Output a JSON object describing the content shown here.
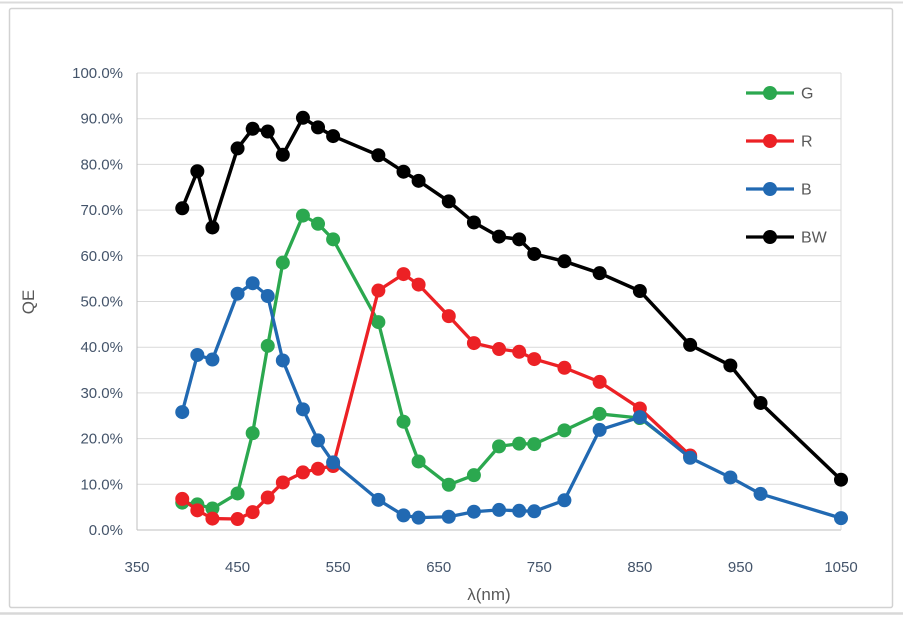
{
  "chart_data": {
    "type": "line",
    "title": "",
    "xlabel": "λ(nm)",
    "ylabel": "QE",
    "xlim": [
      350,
      1050
    ],
    "ylim": [
      0,
      100
    ],
    "grid": "horizontal-only",
    "legend_position": "top-right",
    "x_ticks": [
      350,
      450,
      550,
      650,
      750,
      850,
      950,
      1050
    ],
    "y_ticks": [
      0,
      10,
      20,
      30,
      40,
      50,
      60,
      70,
      80,
      90,
      100
    ],
    "y_tick_labels": [
      "0.0%",
      "10.0%",
      "20.0%",
      "30.0%",
      "40.0%",
      "50.0%",
      "60.0%",
      "70.0%",
      "80.0%",
      "90.0%",
      "100.0%"
    ],
    "x": [
      395,
      410,
      425,
      450,
      465,
      480,
      495,
      515,
      530,
      545,
      590,
      615,
      630,
      660,
      685,
      710,
      730,
      745,
      775,
      810,
      850,
      900,
      940,
      970,
      1050
    ],
    "series": [
      {
        "name": "G",
        "color": "#2BA84F",
        "values": [
          6.0,
          5.6,
          4.7,
          8.0,
          21.2,
          40.3,
          58.5,
          68.8,
          67.0,
          63.6,
          45.5,
          23.7,
          15.0,
          9.9,
          12.0,
          18.3,
          18.9,
          18.8,
          21.8,
          25.4,
          24.5,
          16.0,
          null,
          null,
          null
        ]
      },
      {
        "name": "R",
        "color": "#EC2125",
        "values": [
          6.8,
          4.3,
          2.5,
          2.4,
          3.9,
          7.1,
          10.4,
          12.6,
          13.4,
          14.0,
          52.4,
          56.0,
          53.7,
          46.8,
          40.9,
          39.6,
          39.0,
          37.4,
          35.5,
          32.4,
          26.6,
          16.3,
          null,
          null,
          null
        ]
      },
      {
        "name": "B",
        "color": "#2169B2",
        "values": [
          25.8,
          38.3,
          37.3,
          51.7,
          54.0,
          51.2,
          37.1,
          26.4,
          19.6,
          14.8,
          6.6,
          3.2,
          2.7,
          2.9,
          4.0,
          4.4,
          4.2,
          4.1,
          6.5,
          21.9,
          24.7,
          15.8,
          11.5,
          7.9,
          2.6
        ]
      },
      {
        "name": "BW",
        "color": "#000000",
        "values": [
          70.4,
          78.5,
          66.2,
          83.5,
          87.8,
          87.2,
          82.1,
          90.2,
          88.1,
          86.2,
          82.0,
          78.4,
          76.4,
          71.9,
          67.3,
          64.2,
          63.6,
          60.4,
          58.8,
          56.2,
          52.3,
          40.5,
          36.0,
          27.8,
          11.0
        ]
      }
    ],
    "legend": [
      "G",
      "R",
      "B",
      "BW"
    ],
    "colors": {
      "gridline": "#D9D9D9",
      "axis_line": "#BFBFBF",
      "tick_text": "#44546A",
      "legend_text": "#595959",
      "frame_border": "#D2D2D2"
    }
  }
}
